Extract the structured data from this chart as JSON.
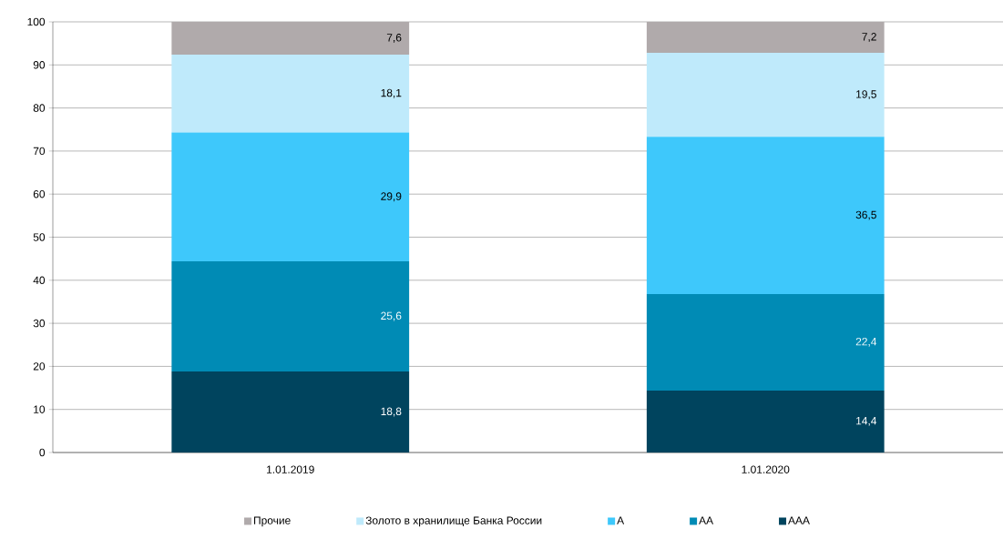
{
  "chart_data": {
    "type": "bar",
    "stacked": true,
    "categories": [
      "1.01.2019",
      "1.01.2020"
    ],
    "series": [
      {
        "name": "AAA",
        "color": "#00445e",
        "values": [
          18.8,
          14.4
        ],
        "value_labels": [
          "18,8",
          "14,4"
        ]
      },
      {
        "name": "AA",
        "color": "#008bb5",
        "values": [
          25.6,
          22.4
        ],
        "value_labels": [
          "25,6",
          "22,4"
        ]
      },
      {
        "name": "A",
        "color": "#3ec8fb",
        "values": [
          29.9,
          36.5
        ],
        "value_labels": [
          "29,9",
          "36,5"
        ]
      },
      {
        "name": "Золото в хранилище Банка России",
        "color": "#bfeafb",
        "values": [
          18.1,
          19.5
        ],
        "value_labels": [
          "18,1",
          "19,5"
        ]
      },
      {
        "name": "Прочие",
        "color": "#b0aaab",
        "values": [
          7.6,
          7.2
        ],
        "value_labels": [
          "7,6",
          "7,2"
        ]
      }
    ],
    "ylim": [
      0,
      100
    ],
    "yticks": [
      0,
      10,
      20,
      30,
      40,
      50,
      60,
      70,
      80,
      90,
      100
    ],
    "grid": "y",
    "legend": "bottom"
  }
}
